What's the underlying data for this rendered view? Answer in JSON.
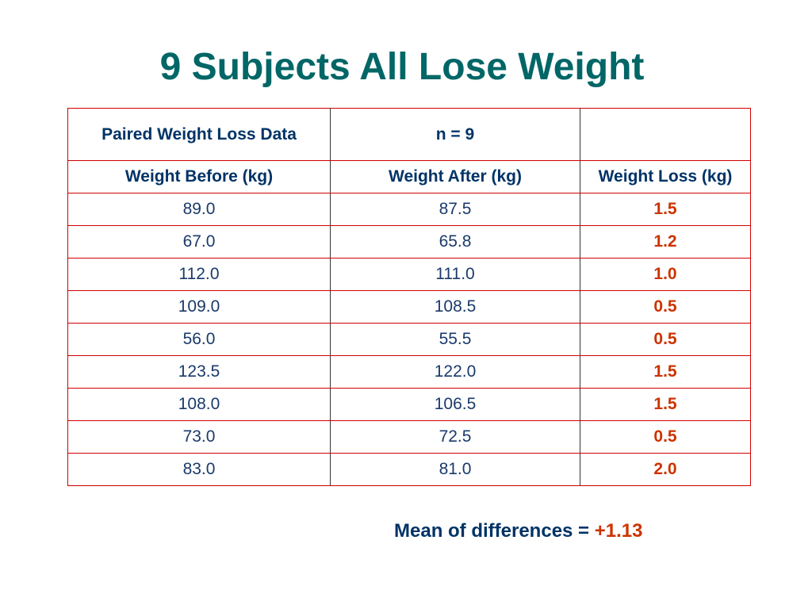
{
  "title": "9 Subjects All Lose Weight",
  "table": {
    "meta": [
      "Paired Weight Loss Data",
      "n = 9",
      ""
    ],
    "headers": [
      "Weight Before (kg)",
      "Weight After (kg)",
      "Weight Loss (kg)"
    ],
    "rows": [
      [
        "89.0",
        "87.5",
        "1.5"
      ],
      [
        "67.0",
        "65.8",
        "1.2"
      ],
      [
        "112.0",
        "111.0",
        "1.0"
      ],
      [
        "109.0",
        "108.5",
        "0.5"
      ],
      [
        "56.0",
        "55.5",
        "0.5"
      ],
      [
        "123.5",
        "122.0",
        "1.5"
      ],
      [
        "108.0",
        "106.5",
        "1.5"
      ],
      [
        "73.0",
        "72.5",
        "0.5"
      ],
      [
        "83.0",
        "81.0",
        "2.0"
      ]
    ]
  },
  "summary": {
    "label": "Mean of differences = ",
    "value": "+1.13"
  },
  "colors": {
    "title": "#006666",
    "header_text": "#003366",
    "loss_text": "#cc3300",
    "grid_outer": "#d00000"
  }
}
